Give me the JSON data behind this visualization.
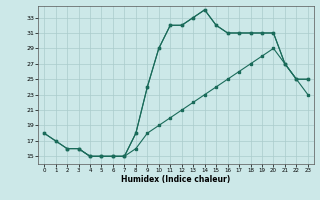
{
  "xlabel": "Humidex (Indice chaleur)",
  "bg_color": "#cce8e8",
  "grid_color": "#aacccc",
  "line_color": "#1a6b5a",
  "yticks": [
    15,
    17,
    19,
    21,
    23,
    25,
    27,
    29,
    31,
    33
  ],
  "xticks": [
    0,
    1,
    2,
    3,
    4,
    5,
    6,
    7,
    8,
    9,
    10,
    11,
    12,
    13,
    14,
    15,
    16,
    17,
    18,
    19,
    20,
    21,
    22,
    23
  ],
  "line1_x": [
    0,
    1,
    2,
    3,
    4,
    5,
    6,
    7,
    8,
    9,
    10,
    11,
    12,
    13,
    14,
    15,
    16,
    17,
    18,
    19,
    20,
    21,
    22,
    23
  ],
  "line1_y": [
    18,
    17,
    16,
    16,
    15,
    15,
    15,
    15,
    18,
    24,
    29,
    32,
    32,
    33,
    34,
    32,
    31,
    31,
    31,
    31,
    31,
    27,
    25,
    25
  ],
  "line2_x": [
    0,
    1,
    2,
    3,
    4,
    5,
    6,
    7,
    8,
    9,
    10,
    11,
    12,
    13,
    14,
    15,
    16,
    17,
    18,
    19,
    20,
    21,
    22,
    23
  ],
  "line2_y": [
    18,
    17,
    16,
    16,
    15,
    15,
    15,
    15,
    16,
    18,
    19,
    20,
    21,
    22,
    23,
    24,
    25,
    26,
    27,
    28,
    29,
    27,
    25,
    23
  ],
  "line3_x": [
    2,
    3,
    4,
    5,
    6,
    7,
    8,
    9,
    10,
    11,
    12,
    13,
    14,
    15,
    16,
    17,
    18,
    19,
    20,
    21,
    22,
    23
  ],
  "line3_y": [
    16,
    16,
    15,
    15,
    15,
    15,
    18,
    24,
    29,
    32,
    32,
    33,
    34,
    32,
    31,
    31,
    31,
    31,
    31,
    27,
    25,
    25
  ]
}
